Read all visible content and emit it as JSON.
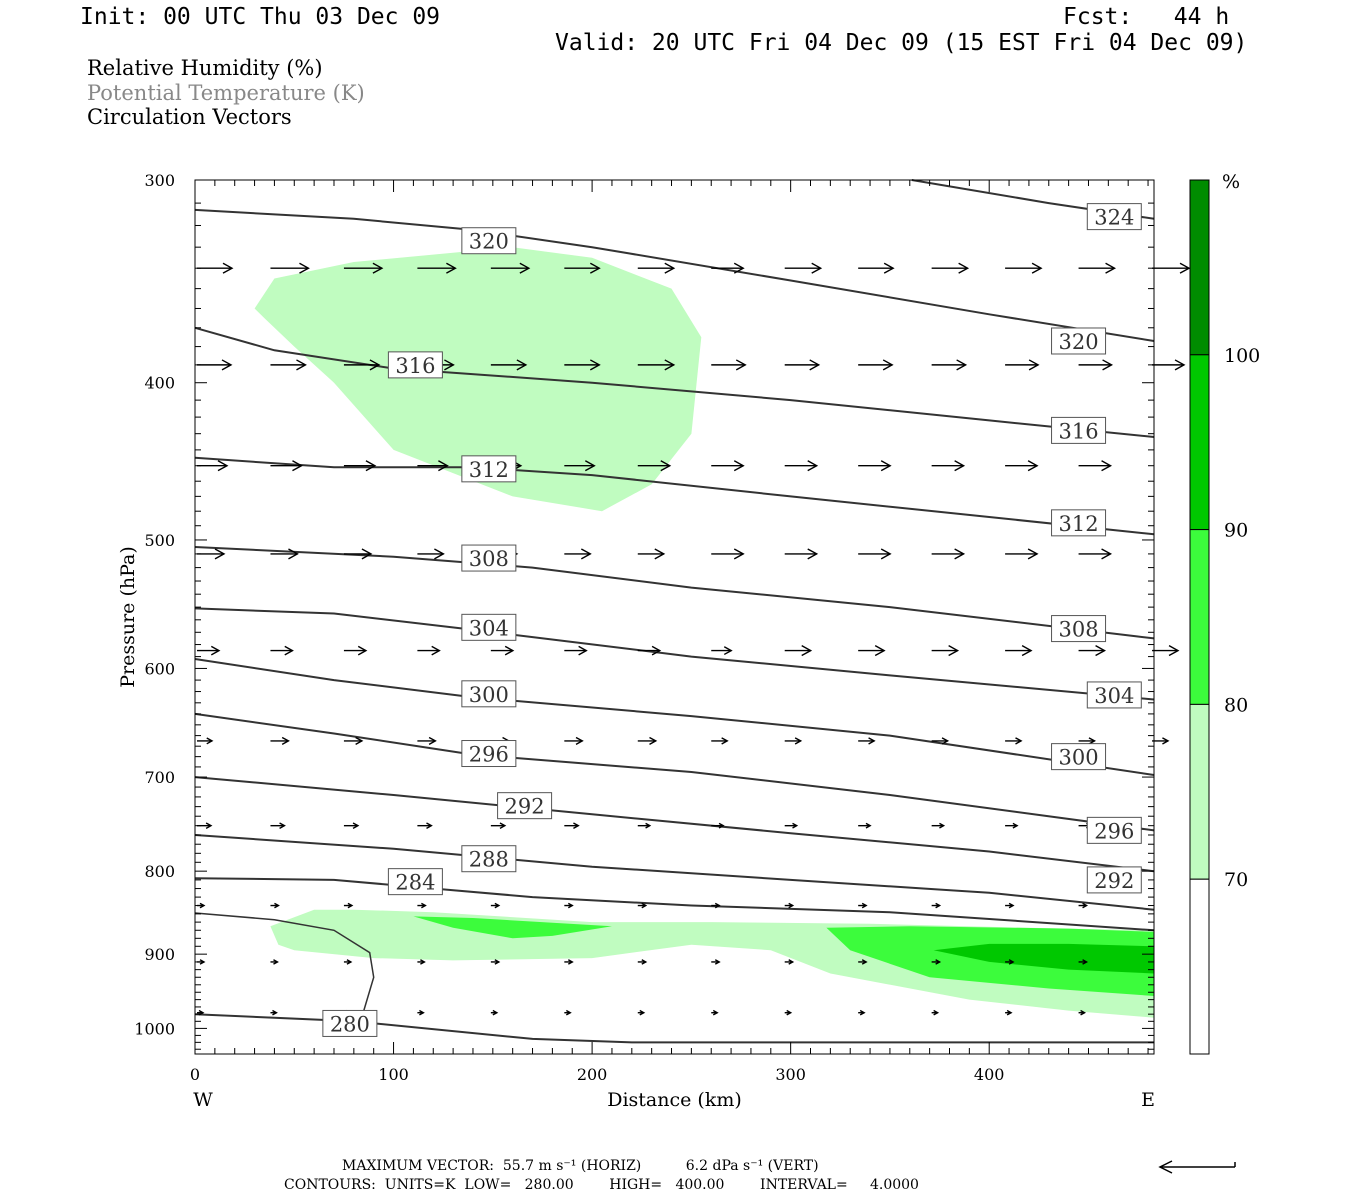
{
  "header": {
    "init": "Init: 00 UTC Thu 03 Dec 09",
    "fcst": "Fcst:   44 h",
    "valid": "Valid: 20 UTC Fri 04 Dec 09 (15 EST Fri 04 Dec 09)"
  },
  "legend": {
    "rh": "Relative Humidity (%)",
    "theta": "Potential Temperature (K)",
    "vectors": "Circulation Vectors"
  },
  "footer": {
    "max_vector": "MAXIMUM VECTOR:  55.7 m s⁻¹ (HORIZ)          6.2 dPa s⁻¹ (VERT)",
    "contours": "CONTOURS:  UNITS=K  LOW=   280.00        HIGH=   400.00        INTERVAL=     4.0000"
  },
  "colors": {
    "rh70": "#c0fcc0",
    "rh80": "#3cfc3c",
    "rh90": "#00c800",
    "rh100": "#008c00",
    "contour": "#333333"
  },
  "chart_data": {
    "type": "cross-section",
    "xlabel": "Distance (km)",
    "ylabel": "Pressure (hPa)",
    "xlim": [
      0,
      483
    ],
    "ylim": [
      1037,
      300
    ],
    "y_scale": "log",
    "x_ticks": [
      0,
      100,
      200,
      300,
      400
    ],
    "x_tick_labels": [
      "0",
      "100",
      "200",
      "300",
      "400"
    ],
    "y_ticks": [
      300,
      400,
      500,
      600,
      700,
      800,
      900,
      1000
    ],
    "y_tick_labels": [
      "300",
      "400",
      "500",
      "600",
      "700",
      "800",
      "900",
      "1000"
    ],
    "x_endpoints": {
      "west": "W",
      "east": "E"
    },
    "colorbar": {
      "unit": "%",
      "levels": [
        70,
        80,
        90,
        100
      ],
      "labels": [
        "70",
        "80",
        "90",
        "100"
      ]
    },
    "theta_contours": [
      {
        "value": 324,
        "label": "324",
        "points": [
          [
            361,
            300
          ],
          [
            430,
            310
          ],
          [
            483,
            317
          ]
        ]
      },
      {
        "value": 320,
        "label": "320",
        "points": [
          [
            0,
            313
          ],
          [
            80,
            317
          ],
          [
            140,
            322
          ],
          [
            200,
            330
          ],
          [
            300,
            346
          ],
          [
            400,
            363
          ],
          [
            483,
            377
          ]
        ]
      },
      {
        "value": 316,
        "label": "316",
        "points": [
          [
            0,
            370
          ],
          [
            40,
            382
          ],
          [
            100,
            392
          ],
          [
            200,
            400
          ],
          [
            300,
            410
          ],
          [
            400,
            422
          ],
          [
            483,
            432
          ]
        ]
      },
      {
        "value": 312,
        "label": "312",
        "points": [
          [
            0,
            445
          ],
          [
            70,
            451
          ],
          [
            140,
            451
          ],
          [
            200,
            456
          ],
          [
            300,
            470
          ],
          [
            400,
            484
          ],
          [
            483,
            496
          ]
        ]
      },
      {
        "value": 308,
        "label": "308",
        "points": [
          [
            0,
            505
          ],
          [
            100,
            512
          ],
          [
            170,
            520
          ],
          [
            250,
            535
          ],
          [
            350,
            550
          ],
          [
            483,
            575
          ]
        ]
      },
      {
        "value": 304,
        "label": "304",
        "points": [
          [
            0,
            551
          ],
          [
            70,
            555
          ],
          [
            140,
            568
          ],
          [
            250,
            590
          ],
          [
            350,
            606
          ],
          [
            483,
            627
          ]
        ]
      },
      {
        "value": 300,
        "label": "300",
        "points": [
          [
            0,
            592
          ],
          [
            70,
            610
          ],
          [
            140,
            625
          ],
          [
            250,
            642
          ],
          [
            350,
            660
          ],
          [
            483,
            698
          ]
        ]
      },
      {
        "value": 296,
        "label": "296",
        "points": [
          [
            0,
            640
          ],
          [
            70,
            658
          ],
          [
            140,
            678
          ],
          [
            250,
            695
          ],
          [
            350,
            718
          ],
          [
            483,
            755
          ]
        ]
      },
      {
        "value": 292,
        "label": "292",
        "points": [
          [
            0,
            700
          ],
          [
            100,
            718
          ],
          [
            200,
            738
          ],
          [
            300,
            758
          ],
          [
            400,
            778
          ],
          [
            483,
            800
          ]
        ]
      },
      {
        "value": 288,
        "label": "288",
        "points": [
          [
            0,
            760
          ],
          [
            100,
            775
          ],
          [
            200,
            795
          ],
          [
            300,
            810
          ],
          [
            400,
            825
          ],
          [
            483,
            845
          ]
        ]
      },
      {
        "value": 284,
        "label": "284",
        "points": [
          [
            0,
            808
          ],
          [
            70,
            810
          ],
          [
            170,
            830
          ],
          [
            250,
            840
          ],
          [
            350,
            848
          ],
          [
            483,
            870
          ]
        ]
      },
      {
        "value": 280,
        "label": "280",
        "points": [
          [
            0,
            980
          ],
          [
            80,
            990
          ],
          [
            170,
            1015
          ],
          [
            220,
            1020
          ],
          [
            483,
            1020
          ]
        ]
      }
    ],
    "rh_regions": [
      {
        "level": 70,
        "points": [
          [
            30,
            360
          ],
          [
            40,
            345
          ],
          [
            80,
            337
          ],
          [
            160,
            330
          ],
          [
            200,
            335
          ],
          [
            240,
            350
          ],
          [
            255,
            375
          ],
          [
            250,
            430
          ],
          [
            230,
            462
          ],
          [
            205,
            480
          ],
          [
            160,
            470
          ],
          [
            100,
            440
          ],
          [
            70,
            400
          ],
          [
            50,
            380
          ],
          [
            35,
            365
          ]
        ]
      },
      {
        "level": 70,
        "points": [
          [
            38,
            865
          ],
          [
            60,
            845
          ],
          [
            80,
            845
          ],
          [
            120,
            848
          ],
          [
            200,
            860
          ],
          [
            260,
            860
          ],
          [
            340,
            862
          ],
          [
            420,
            867
          ],
          [
            483,
            870
          ],
          [
            483,
            985
          ],
          [
            440,
            975
          ],
          [
            390,
            960
          ],
          [
            320,
            925
          ],
          [
            290,
            895
          ],
          [
            250,
            888
          ],
          [
            200,
            905
          ],
          [
            130,
            908
          ],
          [
            90,
            905
          ],
          [
            50,
            895
          ],
          [
            42,
            888
          ]
        ]
      },
      {
        "level": 80,
        "points": [
          [
            110,
            853
          ],
          [
            140,
            855
          ],
          [
            210,
            865
          ],
          [
            180,
            877
          ],
          [
            160,
            880
          ],
          [
            130,
            867
          ]
        ]
      },
      {
        "level": 80,
        "points": [
          [
            318,
            867
          ],
          [
            360,
            865
          ],
          [
            440,
            868
          ],
          [
            483,
            872
          ],
          [
            483,
            955
          ],
          [
            430,
            945
          ],
          [
            370,
            930
          ],
          [
            330,
            895
          ]
        ]
      },
      {
        "level": 90,
        "points": [
          [
            372,
            895
          ],
          [
            400,
            887
          ],
          [
            440,
            887
          ],
          [
            483,
            890
          ],
          [
            483,
            925
          ],
          [
            440,
            920
          ],
          [
            400,
            910
          ]
        ]
      }
    ],
    "vector_rows": [
      {
        "p": 340,
        "x": [
          0,
          37,
          74,
          111,
          148,
          185,
          222,
          259,
          296,
          333,
          370,
          407,
          444,
          481
        ],
        "len": [
          35,
          38,
          38,
          38,
          38,
          35,
          36,
          32,
          36,
          35,
          36,
          36,
          36,
          37
        ]
      },
      {
        "p": 390,
        "x": [
          0,
          37,
          74,
          111,
          148,
          185,
          222,
          259,
          296,
          333,
          370,
          407,
          444,
          481
        ],
        "len": [
          34,
          35,
          35,
          36,
          35,
          35,
          36,
          34,
          34,
          34,
          34,
          33,
          33,
          32
        ]
      },
      {
        "p": 450,
        "x": [
          0,
          37,
          74,
          111,
          148,
          185,
          222,
          259,
          296,
          333,
          370,
          407,
          444
        ],
        "len": [
          30,
          31,
          31,
          30,
          30,
          30,
          32,
          32,
          32,
          32,
          32,
          32,
          32
        ]
      },
      {
        "p": 510,
        "x": [
          0,
          37,
          74,
          111,
          148,
          185,
          222,
          259,
          296,
          333,
          370,
          407,
          444
        ],
        "len": [
          27,
          27,
          27,
          26,
          26,
          26,
          26,
          32,
          32,
          32,
          32,
          32,
          32
        ]
      },
      {
        "p": 585,
        "x": [
          0,
          37,
          74,
          111,
          148,
          185,
          222,
          259,
          296,
          333,
          370,
          407,
          444,
          481
        ],
        "len": [
          22,
          22,
          22,
          22,
          22,
          22,
          22,
          20,
          26,
          26,
          26,
          26,
          26,
          26
        ]
      },
      {
        "p": 665,
        "x": [
          0,
          37,
          74,
          111,
          148,
          185,
          222,
          259,
          296,
          333,
          370,
          407,
          444,
          481
        ],
        "len": [
          15,
          18,
          18,
          18,
          18,
          18,
          18,
          16,
          16,
          16,
          16,
          16,
          16,
          16
        ]
      },
      {
        "p": 750,
        "x": [
          0,
          37,
          74,
          111,
          148,
          185,
          222,
          259,
          296,
          333,
          370,
          407,
          444
        ],
        "len": [
          14,
          14,
          14,
          14,
          14,
          14,
          12,
          12,
          12,
          12,
          12,
          12,
          12
        ]
      },
      {
        "p": 840,
        "x": [
          0,
          37,
          74,
          111,
          148,
          185,
          222,
          259,
          296,
          333,
          370,
          407,
          444
        ],
        "len": [
          7,
          8,
          8,
          8,
          8,
          8,
          8,
          8,
          8,
          8,
          8,
          8,
          8
        ]
      },
      {
        "p": 910,
        "x": [
          0,
          37,
          74,
          111,
          148,
          185,
          222,
          259,
          296,
          333,
          370,
          407,
          444
        ],
        "len": [
          7,
          7,
          7,
          7,
          8,
          8,
          8,
          8,
          8,
          8,
          8,
          8,
          8
        ]
      },
      {
        "p": 978,
        "x": [
          0,
          37,
          74,
          111,
          148,
          185,
          222,
          259,
          296,
          333,
          370,
          407,
          444
        ],
        "len": [
          6,
          6,
          6,
          6,
          6,
          6,
          6,
          6,
          6,
          6,
          6,
          6,
          6
        ]
      }
    ]
  }
}
